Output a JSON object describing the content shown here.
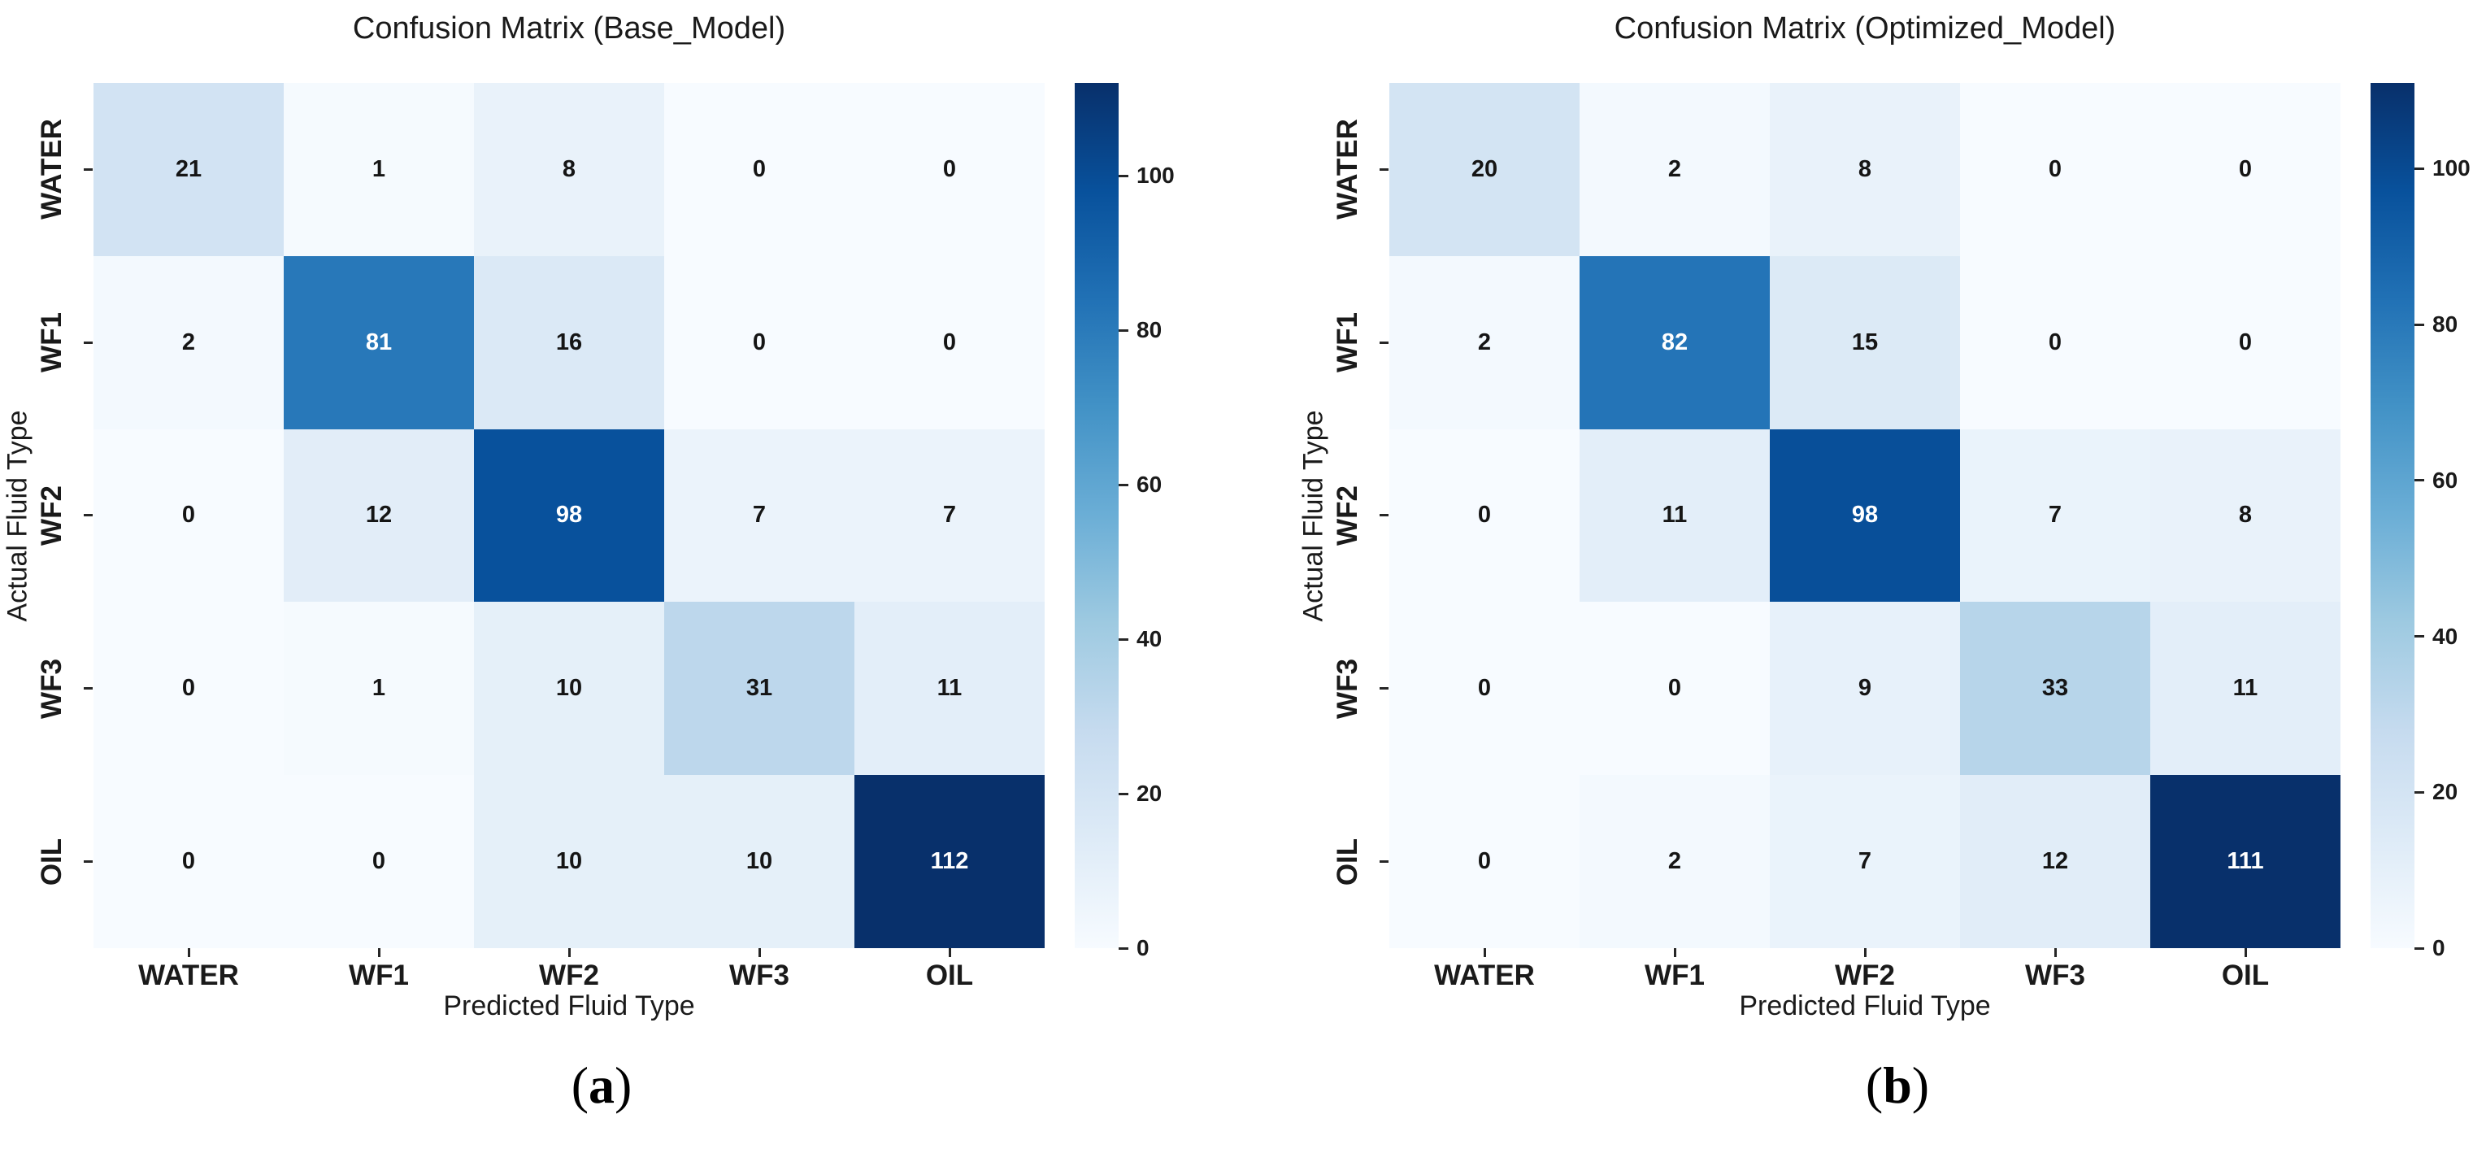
{
  "chart_data": [
    {
      "type": "heatmap",
      "title": "Confusion Matrix (Base_Model)",
      "xlabel": "Predicted Fluid Type",
      "ylabel": "Actual Fluid Type",
      "x_categories": [
        "WATER",
        "WF1",
        "WF2",
        "WF3",
        "OIL"
      ],
      "y_categories": [
        "WATER",
        "WF1",
        "WF2",
        "WF3",
        "OIL"
      ],
      "values": [
        [
          21,
          1,
          8,
          0,
          0
        ],
        [
          2,
          81,
          16,
          0,
          0
        ],
        [
          0,
          12,
          98,
          7,
          7
        ],
        [
          0,
          1,
          10,
          31,
          11
        ],
        [
          0,
          0,
          10,
          10,
          112
        ]
      ],
      "vmin": 0,
      "vmax": 112,
      "colormap": "Blues",
      "colorbar_position": "right",
      "colorbar_ticks": [
        0,
        20,
        40,
        60,
        80,
        100
      ],
      "grid": false,
      "caption_open": "(",
      "caption_letter": "a",
      "caption_close": ")"
    },
    {
      "type": "heatmap",
      "title": "Confusion Matrix (Optimized_Model)",
      "xlabel": "Predicted Fluid Type",
      "ylabel": "Actual Fluid Type",
      "x_categories": [
        "WATER",
        "WF1",
        "WF2",
        "WF3",
        "OIL"
      ],
      "y_categories": [
        "WATER",
        "WF1",
        "WF2",
        "WF3",
        "OIL"
      ],
      "values": [
        [
          20,
          2,
          8,
          0,
          0
        ],
        [
          2,
          82,
          15,
          0,
          0
        ],
        [
          0,
          11,
          98,
          7,
          8
        ],
        [
          0,
          0,
          9,
          33,
          11
        ],
        [
          0,
          2,
          7,
          12,
          111
        ]
      ],
      "vmin": 0,
      "vmax": 111,
      "colormap": "Blues",
      "colorbar_position": "right",
      "colorbar_ticks": [
        0,
        20,
        40,
        60,
        80,
        100
      ],
      "grid": false,
      "caption_open": "(",
      "caption_letter": "b",
      "caption_close": ")"
    }
  ],
  "style": {
    "colormap_blues": [
      "#f7fbff",
      "#deebf7",
      "#c6dbef",
      "#9ecae1",
      "#6baed6",
      "#4292c6",
      "#2171b5",
      "#08519c",
      "#08306b"
    ],
    "cell_text_light": "#ffffff",
    "cell_text_dark": "#151515",
    "axis_text": "#1a1a1a",
    "background": "#ffffff"
  }
}
